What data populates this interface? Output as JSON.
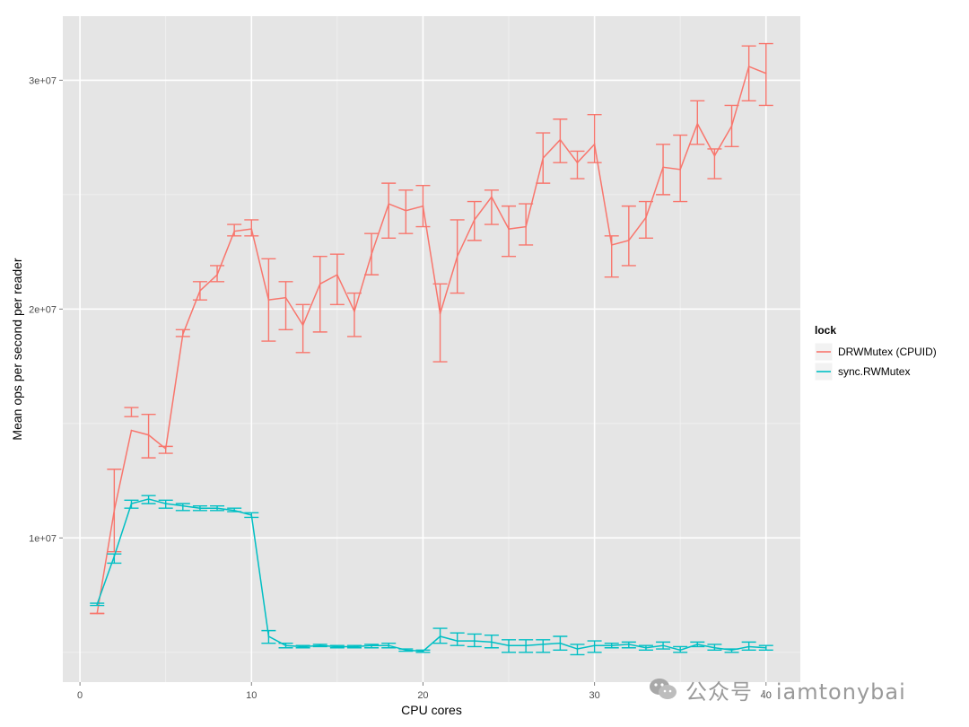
{
  "chart_data": {
    "type": "line",
    "title": "",
    "xlabel": "CPU cores",
    "ylabel": "Mean ops per second per reader",
    "xlim": [
      -1,
      42
    ],
    "ylim": [
      3700000,
      32800000
    ],
    "x_ticks": [
      0,
      10,
      20,
      30,
      40
    ],
    "x_tick_labels": [
      "0",
      "10",
      "20",
      "30",
      "40"
    ],
    "y_ticks": [
      10000000,
      20000000,
      30000000
    ],
    "y_tick_labels": [
      "1e+07",
      "2e+07",
      "3e+07"
    ],
    "grid": true,
    "legend": {
      "title": "lock",
      "placement": "right"
    },
    "x": [
      1,
      2,
      3,
      4,
      5,
      6,
      7,
      8,
      9,
      10,
      11,
      12,
      13,
      14,
      15,
      16,
      17,
      18,
      19,
      20,
      21,
      22,
      23,
      24,
      25,
      26,
      27,
      28,
      29,
      30,
      31,
      32,
      33,
      34,
      35,
      36,
      37,
      38,
      39,
      40
    ],
    "series": [
      {
        "name": "DRWMutex (CPUID)",
        "color": "#F8766D",
        "values": [
          6700000,
          11200000,
          14700000,
          14500000,
          13900000,
          18900000,
          20800000,
          21500000,
          23400000,
          23500000,
          20400000,
          20500000,
          19300000,
          21100000,
          21500000,
          19900000,
          22400000,
          24600000,
          24300000,
          24500000,
          19800000,
          22300000,
          23900000,
          24900000,
          23500000,
          23600000,
          26600000,
          27400000,
          26400000,
          27200000,
          22800000,
          23000000,
          24000000,
          26200000,
          26100000,
          28100000,
          26700000,
          28000000,
          30600000,
          30300000
        ],
        "err_low": [
          6700000,
          9400000,
          15300000,
          13500000,
          13700000,
          18800000,
          20400000,
          21200000,
          23200000,
          23200000,
          18600000,
          19100000,
          18100000,
          19000000,
          20200000,
          18800000,
          21500000,
          23100000,
          23300000,
          23600000,
          17700000,
          20700000,
          23000000,
          23700000,
          22300000,
          22800000,
          25500000,
          26400000,
          25700000,
          26400000,
          21400000,
          21900000,
          23100000,
          25000000,
          24700000,
          27200000,
          25700000,
          27100000,
          29100000,
          28900000
        ],
        "err_high": [
          6700000,
          13000000,
          15700000,
          15400000,
          14000000,
          19100000,
          21200000,
          21900000,
          23700000,
          23900000,
          22200000,
          21200000,
          20200000,
          22300000,
          22400000,
          20700000,
          23300000,
          25500000,
          25200000,
          25400000,
          21100000,
          23900000,
          24700000,
          25200000,
          24500000,
          24600000,
          27700000,
          28300000,
          26900000,
          28500000,
          23200000,
          24500000,
          24700000,
          27200000,
          27600000,
          29100000,
          27000000,
          28900000,
          31500000,
          31600000
        ]
      },
      {
        "name": "sync.RWMutex",
        "color": "#00BFC4",
        "values": [
          7100000,
          9200000,
          11500000,
          11700000,
          11500000,
          11400000,
          11300000,
          11300000,
          11200000,
          11000000,
          5700000,
          5300000,
          5250000,
          5300000,
          5250000,
          5250000,
          5300000,
          5300000,
          5100000,
          5050000,
          5700000,
          5500000,
          5500000,
          5450000,
          5300000,
          5300000,
          5350000,
          5400000,
          5150000,
          5300000,
          5300000,
          5350000,
          5200000,
          5300000,
          5100000,
          5350000,
          5200000,
          5100000,
          5250000,
          5200000
        ],
        "err_low": [
          7050000,
          8900000,
          11300000,
          11500000,
          11300000,
          11200000,
          11200000,
          11200000,
          11150000,
          10900000,
          5400000,
          5200000,
          5200000,
          5250000,
          5200000,
          5200000,
          5200000,
          5200000,
          5050000,
          5000000,
          5400000,
          5300000,
          5250000,
          5200000,
          5000000,
          5000000,
          5000000,
          5100000,
          4900000,
          5000000,
          5200000,
          5200000,
          5100000,
          5150000,
          5000000,
          5250000,
          5100000,
          5000000,
          5100000,
          5100000
        ],
        "err_high": [
          7150000,
          9300000,
          11650000,
          11850000,
          11650000,
          11500000,
          11400000,
          11400000,
          11300000,
          11100000,
          5950000,
          5400000,
          5300000,
          5350000,
          5300000,
          5300000,
          5350000,
          5400000,
          5150000,
          5100000,
          6050000,
          5850000,
          5800000,
          5750000,
          5550000,
          5550000,
          5550000,
          5700000,
          5350000,
          5500000,
          5400000,
          5450000,
          5300000,
          5450000,
          5250000,
          5450000,
          5350000,
          5150000,
          5450000,
          5300000
        ]
      }
    ]
  },
  "watermark": {
    "text": "公众号 · iamtonybai",
    "icon": "wechat-icon"
  },
  "colors": {
    "panel_background": "#E5E5E5",
    "major_grid": "#FFFFFF",
    "minor_grid": "#F2F2F2"
  }
}
